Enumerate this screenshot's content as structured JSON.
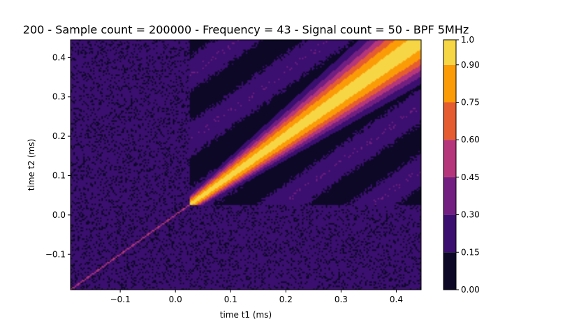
{
  "chart_data": {
    "type": "heatmap",
    "title": "200 - Sample count = 200000 - Frequency = 43 - Signal count = 50 - BPF 5MHz",
    "xlabel": "time t1 (ms)",
    "ylabel": "time t2 (ms)",
    "xlim": [
      -0.19,
      0.445
    ],
    "ylim": [
      -0.19,
      0.445
    ],
    "x_ticks": [
      -0.1,
      0.0,
      0.1,
      0.2,
      0.3,
      0.4
    ],
    "x_tick_labels": [
      "−0.1",
      "0.0",
      "0.1",
      "0.2",
      "0.3",
      "0.4"
    ],
    "y_ticks": [
      -0.1,
      0.0,
      0.1,
      0.2,
      0.3,
      0.4
    ],
    "y_tick_labels": [
      "−0.1",
      "0.0",
      "0.1",
      "0.2",
      "0.3",
      "0.4"
    ],
    "colormap": "inferno",
    "colorbar": {
      "levels": [
        0.0,
        0.15,
        0.3,
        0.45,
        0.6,
        0.75,
        0.9,
        1.0
      ],
      "labels": [
        "0.00",
        "0.15",
        "0.30",
        "0.45",
        "0.60",
        "0.75",
        "0.90",
        "1.0"
      ],
      "colors": [
        "#0c0826",
        "#3b0f6f",
        "#721f81",
        "#b5367a",
        "#e55c30",
        "#fb9b06",
        "#f6d645"
      ]
    },
    "features": {
      "diagonal_onset_ms": 0.025,
      "diagonal_value": 0.95,
      "background_lower_left": 0.2,
      "background_upper_right": 0.05
    },
    "grid": false
  }
}
